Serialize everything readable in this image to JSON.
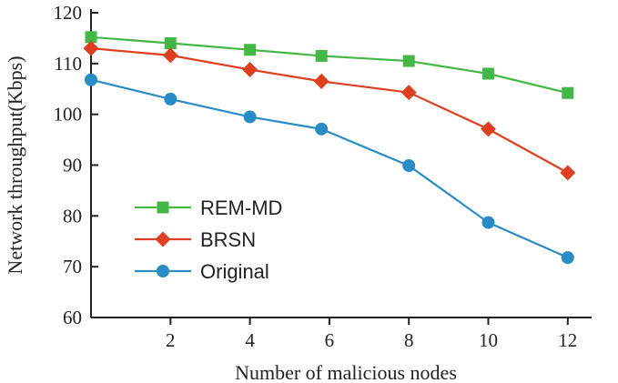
{
  "chart_data": {
    "type": "line",
    "xlabel": "Number of malicious nodes",
    "ylabel": "Network throughput(Kbps)",
    "xlim": [
      0,
      12.6
    ],
    "ylim": [
      60,
      120
    ],
    "xticks": [
      2,
      4,
      6,
      8,
      10,
      12
    ],
    "yticks": [
      60,
      70,
      80,
      90,
      100,
      110,
      120
    ],
    "grid": false,
    "legend_position": "lower-left",
    "series": [
      {
        "name": "REM-MD",
        "color": "#44b846",
        "marker": "square",
        "x": [
          0,
          2,
          4,
          5.8,
          8,
          10,
          12
        ],
        "y": [
          115.2,
          114.0,
          112.7,
          111.5,
          110.5,
          108.0,
          104.2
        ]
      },
      {
        "name": "BRSN",
        "color": "#dd3f20",
        "marker": "diamond",
        "x": [
          0,
          2,
          4,
          5.8,
          8,
          10,
          12
        ],
        "y": [
          113.0,
          111.6,
          108.8,
          106.5,
          104.3,
          97.1,
          88.5
        ]
      },
      {
        "name": "Original",
        "color": "#2a8cc4",
        "marker": "circle",
        "x": [
          0,
          2,
          4,
          5.8,
          8,
          10,
          12
        ],
        "y": [
          106.8,
          103.0,
          99.5,
          97.1,
          89.9,
          78.7,
          71.8
        ]
      }
    ]
  }
}
